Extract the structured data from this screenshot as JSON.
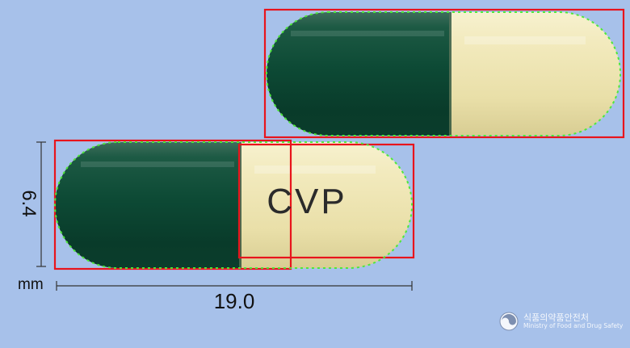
{
  "capsule": {
    "imprint": "CVP",
    "colors": {
      "cap": "#0f4a36",
      "body": "#ede4b2",
      "outline_box": "#e8141c",
      "contour_points": "#4ee83a"
    }
  },
  "dimensions": {
    "length": "19.0",
    "width": "6.4",
    "unit": "mm"
  },
  "logo": {
    "korean": "식품의약품안전처",
    "english": "Ministry of Food and Drug Safety",
    "icon": "mfds-emblem-icon"
  }
}
